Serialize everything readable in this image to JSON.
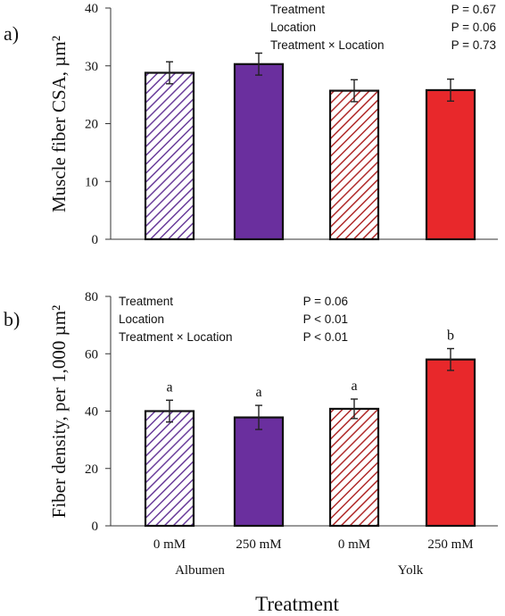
{
  "chart_data": [
    {
      "type": "bar",
      "panel_label": "a)",
      "ylabel": "Muscle fiber CSA, µm²",
      "ylim": [
        0,
        40
      ],
      "yticks": [
        "0",
        "10",
        "20",
        "30",
        "40"
      ],
      "categories": [
        "0 mM",
        "250 mM",
        "0 mM",
        "250 mM"
      ],
      "values": [
        28.8,
        30.3,
        25.7,
        25.8
      ],
      "errors": [
        1.9,
        1.9,
        1.9,
        1.9
      ],
      "bar_styles": [
        {
          "fill": "#6a3d9a",
          "hatched": true
        },
        {
          "fill": "#6a2f9e",
          "hatched": false
        },
        {
          "fill": "#c23b3b",
          "hatched": true
        },
        {
          "fill": "#e8282b",
          "hatched": false
        }
      ],
      "letters": [
        "",
        "",
        "",
        ""
      ],
      "stats": [
        {
          "term": "Treatment",
          "p": "P = 0.67"
        },
        {
          "term": "Location",
          "p": "P = 0.06"
        },
        {
          "term": "Treatment × Location",
          "p": "P = 0.73"
        }
      ]
    },
    {
      "type": "bar",
      "panel_label": "b)",
      "ylabel": "Fiber density, per 1,000 µm²",
      "ylim": [
        0,
        80
      ],
      "yticks": [
        "0",
        "20",
        "40",
        "60",
        "80"
      ],
      "categories": [
        "0 mM",
        "250 mM",
        "0 mM",
        "250 mM"
      ],
      "values": [
        40,
        37.8,
        40.8,
        58
      ],
      "errors": [
        3.8,
        4.2,
        3.4,
        3.8
      ],
      "bar_styles": [
        {
          "fill": "#6a3d9a",
          "hatched": true
        },
        {
          "fill": "#6a2f9e",
          "hatched": false
        },
        {
          "fill": "#c23b3b",
          "hatched": true
        },
        {
          "fill": "#e8282b",
          "hatched": false
        }
      ],
      "letters": [
        "a",
        "a",
        "a",
        "b"
      ],
      "stats": [
        {
          "term": "Treatment",
          "p": "P = 0.06"
        },
        {
          "term": "Location",
          "p": "P < 0.01"
        },
        {
          "term": "Treatment × Location",
          "p": "P < 0.01"
        }
      ]
    }
  ],
  "groups": [
    "Albumen",
    "Yolk"
  ],
  "xlabel": "Treatment",
  "colors": {
    "axis": "#333333",
    "text": "#111111",
    "errorbar": "#222222"
  }
}
